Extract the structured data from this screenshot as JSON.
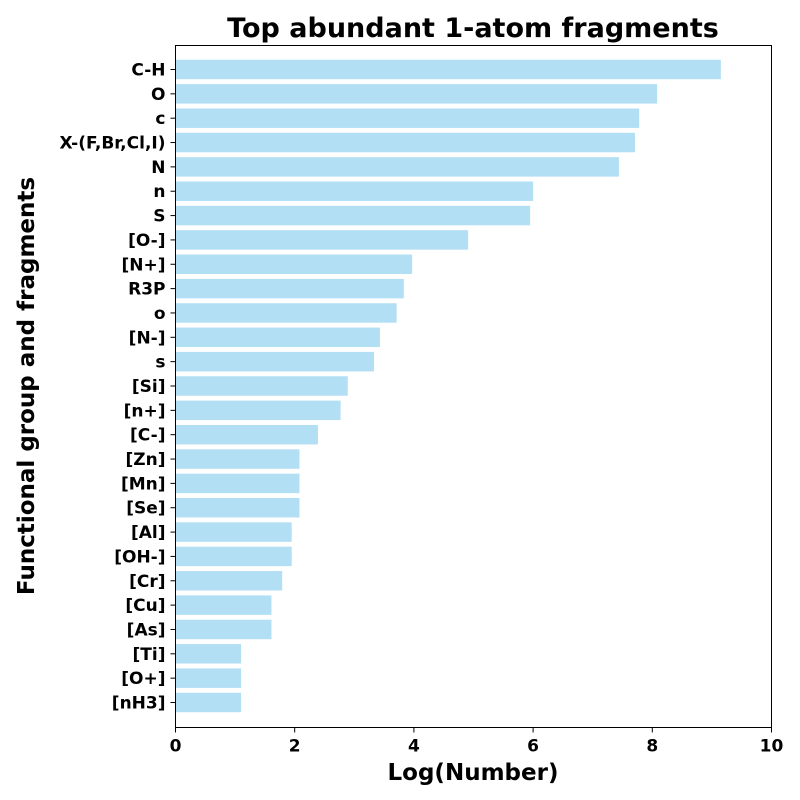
{
  "chart_data": {
    "type": "bar",
    "orientation": "horizontal",
    "title": "Top abundant 1-atom fragments",
    "xlabel": "Log(Number)",
    "ylabel": "Functional group and fragments",
    "xlim": [
      0,
      10
    ],
    "xticks": [
      0,
      2,
      4,
      6,
      8,
      10
    ],
    "grid": false,
    "bar_color": "#b3dff5",
    "categories": [
      "C-H",
      "O",
      "c",
      "X-(F,Br,Cl,I)",
      "N",
      "n",
      "S",
      "[O-]",
      "[N+]",
      "R3P",
      "o",
      "[N-]",
      "s",
      "[Si]",
      "[n+]",
      "[C-]",
      "[Zn]",
      "[Mn]",
      "[Se]",
      "[Al]",
      "[OH-]",
      "[Cr]",
      "[Cu]",
      "[As]",
      "[Ti]",
      "[O+]",
      "[nH3]"
    ],
    "values": [
      9.15,
      8.08,
      7.78,
      7.71,
      7.44,
      6.0,
      5.95,
      4.91,
      3.97,
      3.83,
      3.71,
      3.43,
      3.33,
      2.89,
      2.77,
      2.39,
      2.08,
      2.08,
      2.08,
      1.95,
      1.95,
      1.79,
      1.61,
      1.61,
      1.1,
      1.1,
      1.1
    ]
  }
}
